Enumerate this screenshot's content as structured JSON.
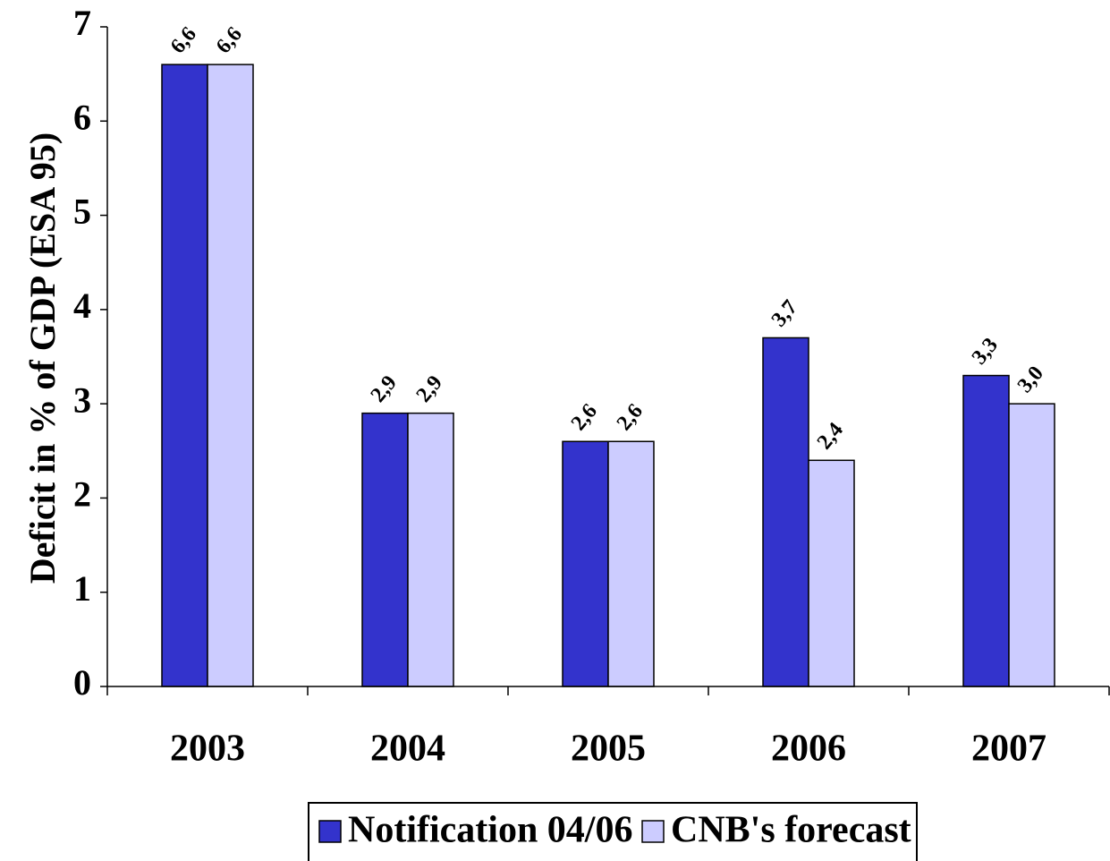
{
  "chart_data": {
    "type": "bar",
    "y_label": "Deficit in % of GDP (ESA 95)",
    "categories": [
      "2003",
      "2004",
      "2005",
      "2006",
      "2007"
    ],
    "series": [
      {
        "name": "Notification 04/06",
        "color": "#3333cc",
        "values": [
          6.6,
          2.9,
          2.6,
          3.7,
          3.3
        ],
        "value_labels": [
          "6,6",
          "2,9",
          "2,6",
          "3,7",
          "3,3"
        ]
      },
      {
        "name": "CNB's forecast",
        "color": "#ccccff",
        "values": [
          6.6,
          2.9,
          2.6,
          2.4,
          3.0
        ],
        "value_labels": [
          "6,6",
          "2,9",
          "2,6",
          "2,4",
          "3,0"
        ]
      }
    ],
    "ylim": [
      0,
      7
    ],
    "yticks": [
      0,
      1,
      2,
      3,
      4,
      5,
      6,
      7
    ],
    "grid": false,
    "legend": "bottom"
  }
}
